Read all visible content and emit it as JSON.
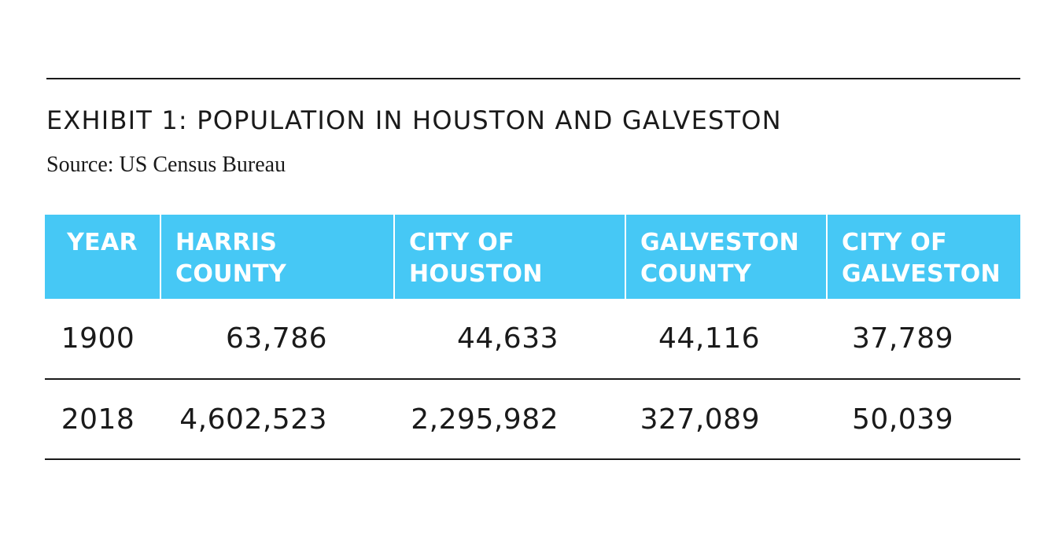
{
  "exhibit": {
    "title": "EXHIBIT 1: POPULATION IN HOUSTON AND GALVESTON",
    "source": "Source: US Census Bureau"
  },
  "table": {
    "headers": [
      {
        "line1": "YEAR",
        "line2": ""
      },
      {
        "line1": "HARRIS",
        "line2": "COUNTY"
      },
      {
        "line1": "CITY OF",
        "line2": "HOUSTON"
      },
      {
        "line1": "GALVESTON",
        "line2": "COUNTY"
      },
      {
        "line1": "CITY OF",
        "line2": "GALVESTON"
      }
    ],
    "rows": [
      {
        "cells": [
          "1900",
          "63,786",
          "44,633",
          "44,116",
          "37,789"
        ]
      },
      {
        "cells": [
          "2018",
          "4,602,523",
          "2,295,982",
          "327,089",
          "50,039"
        ]
      }
    ]
  },
  "colors": {
    "header_background": "#46c8f5",
    "header_text": "#ffffff",
    "body_text": "#1a1a1a",
    "rules": "#1a1a1a"
  }
}
